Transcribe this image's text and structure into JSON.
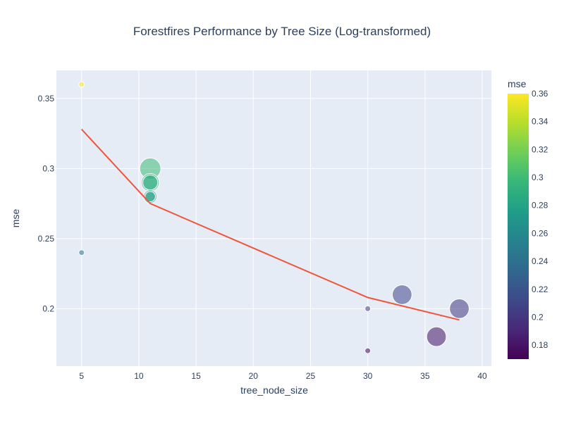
{
  "chart_data": {
    "type": "scatter",
    "title": "Forestfires Performance by Tree Size (Log-transformed)",
    "xlabel": "tree_node_size",
    "ylabel": "mse",
    "xlim": [
      2.8,
      40.8
    ],
    "ylim": [
      0.159,
      0.37
    ],
    "x_ticks": [
      5,
      10,
      15,
      20,
      25,
      30,
      35,
      40
    ],
    "y_ticks": [
      0.2,
      0.25,
      0.3,
      0.35
    ],
    "grid": true,
    "plot_background": "#e5ecf6",
    "color_scale": {
      "title": "mse",
      "name": "viridis",
      "min": 0.17,
      "max": 0.36,
      "ticks": [
        0.18,
        0.2,
        0.22,
        0.24,
        0.26,
        0.28,
        0.3,
        0.32,
        0.34,
        0.36
      ],
      "stops": [
        "#440154",
        "#482878",
        "#3e4989",
        "#31688e",
        "#26828e",
        "#1f9e89",
        "#35b779",
        "#6ece58",
        "#b5de2b",
        "#fde725"
      ]
    },
    "points": [
      {
        "x": 5,
        "y": 0.36,
        "size": 1
      },
      {
        "x": 5,
        "y": 0.24,
        "size": 1
      },
      {
        "x": 11,
        "y": 0.3,
        "size": 3
      },
      {
        "x": 11,
        "y": 0.29,
        "size": 2.6
      },
      {
        "x": 11,
        "y": 0.29,
        "size": 2.2
      },
      {
        "x": 11,
        "y": 0.28,
        "size": 2
      },
      {
        "x": 11,
        "y": 0.28,
        "size": 1.6
      },
      {
        "x": 30,
        "y": 0.2,
        "size": 1
      },
      {
        "x": 30,
        "y": 0.17,
        "size": 1
      },
      {
        "x": 33,
        "y": 0.21,
        "size": 2.8
      },
      {
        "x": 36,
        "y": 0.18,
        "size": 2.8
      },
      {
        "x": 38,
        "y": 0.2,
        "size": 2.8
      }
    ],
    "trend_line": {
      "color": "#ef553b",
      "x": [
        5,
        11,
        30,
        38
      ],
      "y": [
        0.328,
        0.275,
        0.208,
        0.192
      ]
    }
  }
}
